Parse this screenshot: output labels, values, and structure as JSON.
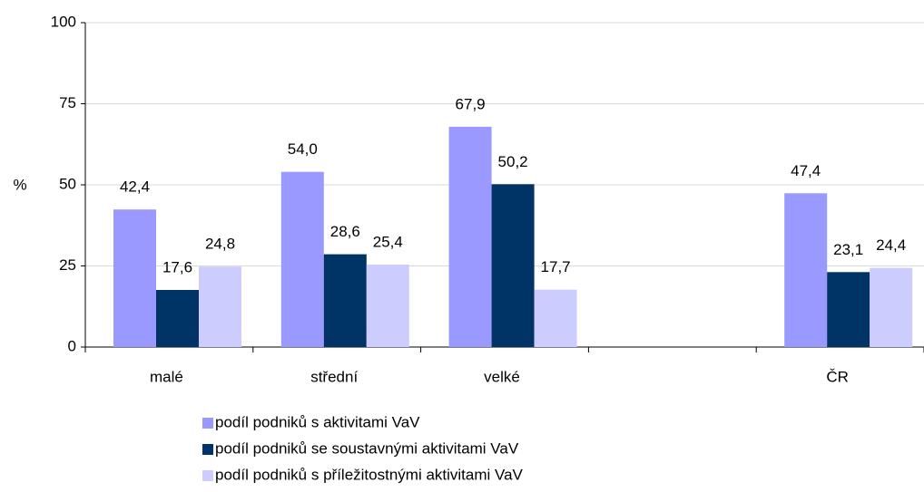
{
  "chart_data": {
    "type": "bar",
    "y_label": "%",
    "categories": [
      "malé",
      "střední",
      "velké",
      null,
      "ČR"
    ],
    "series": [
      {
        "name": "podíl podniků s aktivitami VaV",
        "color": "#9999ff",
        "values": [
          42.4,
          54.0,
          67.9,
          null,
          47.4
        ],
        "value_labels": [
          "42,4",
          "54,0",
          "67,9",
          null,
          "47,4"
        ]
      },
      {
        "name": "podíl podniků se soustavnými aktivitami VaV",
        "color": "#003366",
        "values": [
          17.6,
          28.6,
          50.2,
          null,
          23.1
        ],
        "value_labels": [
          "17,6",
          "28,6",
          "50,2",
          null,
          "23,1"
        ]
      },
      {
        "name": "podíl podniků s příležitostnými aktivitami VaV",
        "color": "#ccccff",
        "values": [
          24.8,
          25.4,
          17.7,
          null,
          24.4
        ],
        "value_labels": [
          "24,8",
          "25,4",
          "17,7",
          null,
          "24,4"
        ]
      }
    ],
    "ylim": [
      0,
      100
    ],
    "yticks": [
      0,
      25,
      50,
      75,
      100
    ],
    "grid": true
  }
}
